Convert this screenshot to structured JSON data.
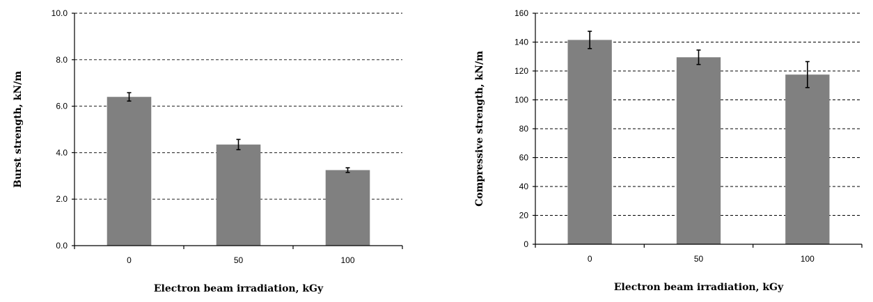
{
  "chart_data": [
    {
      "type": "bar",
      "categories": [
        "0",
        "50",
        "100"
      ],
      "values": [
        6.4,
        4.35,
        3.25
      ],
      "errors": [
        0.18,
        0.22,
        0.1
      ],
      "xlabel": "Electron beam irradiation, kGy",
      "ylabel": "Burst strength, kN/m",
      "ylim": [
        0,
        10
      ],
      "yticks": [
        0,
        2,
        4,
        6,
        8,
        10
      ],
      "ytick_labels": [
        "0.0",
        "2.0",
        "4.0",
        "6.0",
        "8.0",
        "10.0"
      ],
      "grid": "horizontal dashed",
      "bar_color": "#808080"
    },
    {
      "type": "bar",
      "categories": [
        "0",
        "50",
        "100"
      ],
      "values": [
        141.5,
        129.5,
        117.5
      ],
      "errors": [
        6,
        5,
        9
      ],
      "xlabel": "Electron beam irradiation, kGy",
      "ylabel": "Compressive strength, kN/m",
      "ylim": [
        0,
        160
      ],
      "yticks": [
        0,
        20,
        40,
        60,
        80,
        100,
        120,
        140,
        160
      ],
      "ytick_labels": [
        "0",
        "20",
        "40",
        "60",
        "80",
        "100",
        "120",
        "140",
        "160"
      ],
      "grid": "horizontal dashed",
      "bar_color": "#808080"
    }
  ]
}
